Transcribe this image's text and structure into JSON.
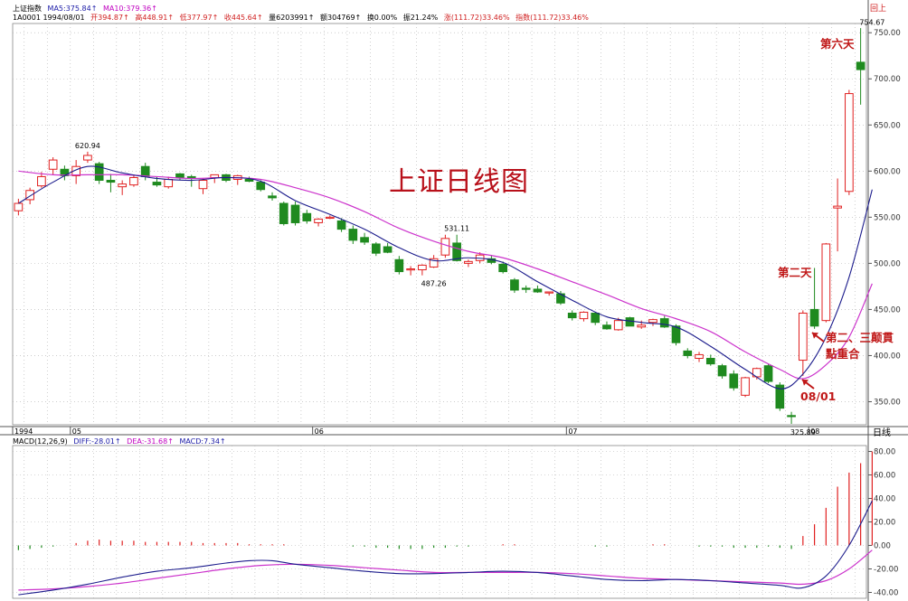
{
  "header": {
    "index_name": "上证指数",
    "ma5": "MA5:375.84↑",
    "ma10": "MA10:379.36↑",
    "code_date": "1A0001 1994/08/01",
    "open": "开394.87↑",
    "high": "高448.91↑",
    "low": "低377.97↑",
    "close": "收445.64↑",
    "volume": "量6203991↑",
    "amount": "额304769↑",
    "turnover": "换0.00%",
    "amplitude": "振21.24%",
    "change": "涨(111.72)33.46%",
    "index_change": "指数(111.72)33.46%",
    "corner": "回上"
  },
  "overlay_title": "上证日线图",
  "annotations": {
    "day6": "第六天",
    "day2": "第二天",
    "day23_line1": "第二、三颠貫",
    "day23_line2": "點重合",
    "date_0801": "08/01"
  },
  "macd_header": {
    "name": "MACD(12,26,9)",
    "diff": "DIFF:-28.01↑",
    "dea": "DEA:-31.68↑",
    "macd": "MACD:7.34↑"
  },
  "period_label": "日线",
  "colors": {
    "up": "#e02020",
    "down": "#1f8a1f",
    "ma5": "#1c1c8c",
    "ma10": "#cc33cc",
    "grid": "#b0b0b0",
    "title": "#b8101a"
  },
  "chart_data": [
    {
      "type": "candlestick",
      "title": "",
      "x_labels": [
        "1994",
        "05",
        "06",
        "07",
        "08"
      ],
      "x_label_index": [
        0,
        5,
        26,
        48,
        69
      ],
      "ylim": [
        325,
        760
      ],
      "y_ticks": [
        350,
        400,
        450,
        500,
        550,
        600,
        650,
        700,
        750
      ],
      "y_tick_labels": [
        "350.00",
        "400.00",
        "450.00",
        "500.00",
        "550.00",
        "600.00",
        "650.00",
        "700.00",
        "750.00"
      ],
      "price_labels": [
        {
          "text": "620.94",
          "index": 6,
          "value": 620.94
        },
        {
          "text": "531.11",
          "index": 38,
          "value": 531.11
        },
        {
          "text": "487.26",
          "index": 36,
          "value": 487.26
        },
        {
          "text": "325.89",
          "index": 68,
          "value": 325.89
        },
        {
          "text": "754.67",
          "index": 74,
          "value": 754.67
        }
      ],
      "candles": [
        {
          "o": 557,
          "h": 570,
          "l": 552,
          "c": 565
        },
        {
          "o": 569,
          "h": 582,
          "l": 564,
          "c": 579
        },
        {
          "o": 584,
          "h": 599,
          "l": 582,
          "c": 594
        },
        {
          "o": 602,
          "h": 615,
          "l": 596,
          "c": 612
        },
        {
          "o": 602,
          "h": 606,
          "l": 590,
          "c": 595
        },
        {
          "o": 595,
          "h": 612,
          "l": 586,
          "c": 605
        },
        {
          "o": 612,
          "h": 621,
          "l": 609,
          "c": 617
        },
        {
          "o": 608,
          "h": 610,
          "l": 586,
          "c": 590
        },
        {
          "o": 590,
          "h": 597,
          "l": 577,
          "c": 588
        },
        {
          "o": 583,
          "h": 590,
          "l": 574,
          "c": 586
        },
        {
          "o": 585,
          "h": 595,
          "l": 583,
          "c": 593
        },
        {
          "o": 605,
          "h": 609,
          "l": 590,
          "c": 594
        },
        {
          "o": 588,
          "h": 594,
          "l": 583,
          "c": 585
        },
        {
          "o": 583,
          "h": 594,
          "l": 581,
          "c": 591
        },
        {
          "o": 597,
          "h": 598,
          "l": 590,
          "c": 593
        },
        {
          "o": 594,
          "h": 596,
          "l": 583,
          "c": 592
        },
        {
          "o": 581,
          "h": 592,
          "l": 575,
          "c": 590
        },
        {
          "o": 593,
          "h": 596,
          "l": 587,
          "c": 596
        },
        {
          "o": 596,
          "h": 597,
          "l": 588,
          "c": 590
        },
        {
          "o": 591,
          "h": 596,
          "l": 585,
          "c": 595
        },
        {
          "o": 591,
          "h": 594,
          "l": 588,
          "c": 589
        },
        {
          "o": 588,
          "h": 590,
          "l": 578,
          "c": 580
        },
        {
          "o": 573,
          "h": 577,
          "l": 568,
          "c": 571
        },
        {
          "o": 565,
          "h": 567,
          "l": 541,
          "c": 543
        },
        {
          "o": 563,
          "h": 567,
          "l": 541,
          "c": 544
        },
        {
          "o": 554,
          "h": 558,
          "l": 543,
          "c": 546
        },
        {
          "o": 544,
          "h": 549,
          "l": 540,
          "c": 548
        },
        {
          "o": 549,
          "h": 552,
          "l": 548,
          "c": 550
        },
        {
          "o": 546,
          "h": 549,
          "l": 534,
          "c": 537
        },
        {
          "o": 537,
          "h": 541,
          "l": 521,
          "c": 525
        },
        {
          "o": 528,
          "h": 533,
          "l": 520,
          "c": 523
        },
        {
          "o": 521,
          "h": 523,
          "l": 508,
          "c": 511
        },
        {
          "o": 518,
          "h": 522,
          "l": 511,
          "c": 512
        },
        {
          "o": 504,
          "h": 508,
          "l": 488,
          "c": 491
        },
        {
          "o": 493,
          "h": 497,
          "l": 487,
          "c": 494
        },
        {
          "o": 493,
          "h": 499,
          "l": 487,
          "c": 498
        },
        {
          "o": 496,
          "h": 509,
          "l": 495,
          "c": 505
        },
        {
          "o": 509,
          "h": 531,
          "l": 506,
          "c": 527
        },
        {
          "o": 522,
          "h": 531,
          "l": 502,
          "c": 503
        },
        {
          "o": 500,
          "h": 504,
          "l": 496,
          "c": 502
        },
        {
          "o": 503,
          "h": 512,
          "l": 500,
          "c": 509
        },
        {
          "o": 505,
          "h": 509,
          "l": 499,
          "c": 501
        },
        {
          "o": 499,
          "h": 502,
          "l": 489,
          "c": 491
        },
        {
          "o": 482,
          "h": 484,
          "l": 468,
          "c": 471
        },
        {
          "o": 473,
          "h": 476,
          "l": 468,
          "c": 472
        },
        {
          "o": 472,
          "h": 476,
          "l": 468,
          "c": 469
        },
        {
          "o": 468,
          "h": 469,
          "l": 465,
          "c": 469
        },
        {
          "o": 467,
          "h": 470,
          "l": 455,
          "c": 457
        },
        {
          "o": 446,
          "h": 449,
          "l": 438,
          "c": 441
        },
        {
          "o": 440,
          "h": 448,
          "l": 437,
          "c": 447
        },
        {
          "o": 446,
          "h": 447,
          "l": 433,
          "c": 436
        },
        {
          "o": 433,
          "h": 437,
          "l": 428,
          "c": 429
        },
        {
          "o": 428,
          "h": 441,
          "l": 427,
          "c": 438
        },
        {
          "o": 441,
          "h": 442,
          "l": 432,
          "c": 432
        },
        {
          "o": 431,
          "h": 438,
          "l": 429,
          "c": 433
        },
        {
          "o": 436,
          "h": 440,
          "l": 432,
          "c": 439
        },
        {
          "o": 440,
          "h": 443,
          "l": 430,
          "c": 431
        },
        {
          "o": 432,
          "h": 434,
          "l": 411,
          "c": 414
        },
        {
          "o": 405,
          "h": 408,
          "l": 397,
          "c": 400
        },
        {
          "o": 397,
          "h": 404,
          "l": 393,
          "c": 401
        },
        {
          "o": 397,
          "h": 401,
          "l": 389,
          "c": 391
        },
        {
          "o": 389,
          "h": 391,
          "l": 375,
          "c": 378
        },
        {
          "o": 380,
          "h": 384,
          "l": 362,
          "c": 365
        },
        {
          "o": 357,
          "h": 377,
          "l": 355,
          "c": 376
        },
        {
          "o": 377,
          "h": 387,
          "l": 374,
          "c": 386
        },
        {
          "o": 389,
          "h": 391,
          "l": 370,
          "c": 372
        },
        {
          "o": 368,
          "h": 371,
          "l": 340,
          "c": 343
        },
        {
          "o": 335,
          "h": 339,
          "l": 326,
          "c": 334
        },
        {
          "o": 395,
          "h": 449,
          "l": 378,
          "c": 446
        },
        {
          "o": 450,
          "h": 495,
          "l": 429,
          "c": 432
        },
        {
          "o": 438,
          "h": 522,
          "l": 436,
          "c": 521
        },
        {
          "o": 560,
          "h": 592,
          "l": 513,
          "c": 562
        },
        {
          "o": 578,
          "h": 688,
          "l": 574,
          "c": 684
        },
        {
          "o": 718,
          "h": 755,
          "l": 672,
          "c": 710
        }
      ],
      "ma5": [
        {
          "i": 0,
          "v": 565
        },
        {
          "i": 3,
          "v": 588
        },
        {
          "i": 6,
          "v": 605
        },
        {
          "i": 9,
          "v": 598
        },
        {
          "i": 12,
          "v": 592
        },
        {
          "i": 15,
          "v": 590
        },
        {
          "i": 18,
          "v": 593
        },
        {
          "i": 21,
          "v": 589
        },
        {
          "i": 24,
          "v": 568
        },
        {
          "i": 27,
          "v": 553
        },
        {
          "i": 30,
          "v": 537
        },
        {
          "i": 33,
          "v": 517
        },
        {
          "i": 36,
          "v": 503
        },
        {
          "i": 39,
          "v": 506
        },
        {
          "i": 42,
          "v": 501
        },
        {
          "i": 45,
          "v": 480
        },
        {
          "i": 48,
          "v": 460
        },
        {
          "i": 51,
          "v": 442
        },
        {
          "i": 54,
          "v": 436
        },
        {
          "i": 57,
          "v": 431
        },
        {
          "i": 60,
          "v": 410
        },
        {
          "i": 63,
          "v": 385
        },
        {
          "i": 66,
          "v": 364
        },
        {
          "i": 68,
          "v": 380
        },
        {
          "i": 70,
          "v": 420
        },
        {
          "i": 72,
          "v": 485
        },
        {
          "i": 74,
          "v": 580
        }
      ],
      "ma10": [
        {
          "i": 0,
          "v": 600
        },
        {
          "i": 3,
          "v": 596
        },
        {
          "i": 6,
          "v": 596
        },
        {
          "i": 9,
          "v": 596
        },
        {
          "i": 12,
          "v": 594
        },
        {
          "i": 15,
          "v": 592
        },
        {
          "i": 18,
          "v": 593
        },
        {
          "i": 21,
          "v": 591
        },
        {
          "i": 24,
          "v": 582
        },
        {
          "i": 27,
          "v": 571
        },
        {
          "i": 30,
          "v": 556
        },
        {
          "i": 33,
          "v": 538
        },
        {
          "i": 36,
          "v": 524
        },
        {
          "i": 39,
          "v": 513
        },
        {
          "i": 42,
          "v": 506
        },
        {
          "i": 45,
          "v": 494
        },
        {
          "i": 48,
          "v": 480
        },
        {
          "i": 51,
          "v": 466
        },
        {
          "i": 54,
          "v": 451
        },
        {
          "i": 57,
          "v": 440
        },
        {
          "i": 60,
          "v": 426
        },
        {
          "i": 63,
          "v": 404
        },
        {
          "i": 66,
          "v": 385
        },
        {
          "i": 68,
          "v": 375
        },
        {
          "i": 70,
          "v": 390
        },
        {
          "i": 72,
          "v": 420
        },
        {
          "i": 74,
          "v": 478
        }
      ]
    },
    {
      "type": "bar",
      "title": "MACD(12,26,9)",
      "ylim": [
        -45,
        85
      ],
      "y_ticks": [
        -40,
        -20,
        0,
        20,
        40,
        60,
        80
      ],
      "y_tick_labels": [
        "-40.00",
        "-20.00",
        "0.00",
        "20.00",
        "40.00",
        "60.00",
        "80.00"
      ],
      "macd_bars": [
        -4,
        -3,
        -2,
        -1,
        0,
        2,
        4,
        5,
        4,
        4,
        4,
        3,
        3,
        3,
        3,
        3,
        2,
        2,
        2,
        2,
        1,
        1,
        1,
        1,
        0,
        0,
        0,
        0,
        0,
        -1,
        -1,
        -2,
        -2,
        -3,
        -3,
        -3,
        -2,
        -2,
        -1,
        -1,
        0,
        0,
        1,
        1,
        0,
        0,
        0,
        0,
        0,
        0,
        -1,
        -1,
        0,
        0,
        0,
        1,
        1,
        0,
        0,
        -1,
        -1,
        -1,
        -2,
        -2,
        -2,
        -1,
        -2,
        -3,
        8,
        18,
        32,
        50,
        62,
        70,
        80
      ],
      "diff": [
        {
          "i": 0,
          "v": -42
        },
        {
          "i": 3,
          "v": -38
        },
        {
          "i": 6,
          "v": -33
        },
        {
          "i": 9,
          "v": -27
        },
        {
          "i": 12,
          "v": -22
        },
        {
          "i": 15,
          "v": -19
        },
        {
          "i": 18,
          "v": -15
        },
        {
          "i": 20,
          "v": -13
        },
        {
          "i": 22,
          "v": -13
        },
        {
          "i": 24,
          "v": -16
        },
        {
          "i": 27,
          "v": -19
        },
        {
          "i": 30,
          "v": -22
        },
        {
          "i": 33,
          "v": -24
        },
        {
          "i": 36,
          "v": -24
        },
        {
          "i": 39,
          "v": -23
        },
        {
          "i": 42,
          "v": -22
        },
        {
          "i": 45,
          "v": -23
        },
        {
          "i": 48,
          "v": -26
        },
        {
          "i": 51,
          "v": -29
        },
        {
          "i": 54,
          "v": -30
        },
        {
          "i": 57,
          "v": -29
        },
        {
          "i": 60,
          "v": -30
        },
        {
          "i": 63,
          "v": -32
        },
        {
          "i": 66,
          "v": -34
        },
        {
          "i": 68,
          "v": -36
        },
        {
          "i": 70,
          "v": -26
        },
        {
          "i": 72,
          "v": 0
        },
        {
          "i": 74,
          "v": 38
        }
      ],
      "dea": [
        {
          "i": 0,
          "v": -38
        },
        {
          "i": 3,
          "v": -37
        },
        {
          "i": 6,
          "v": -35
        },
        {
          "i": 9,
          "v": -32
        },
        {
          "i": 12,
          "v": -28
        },
        {
          "i": 15,
          "v": -24
        },
        {
          "i": 18,
          "v": -20
        },
        {
          "i": 21,
          "v": -17
        },
        {
          "i": 24,
          "v": -16
        },
        {
          "i": 27,
          "v": -17
        },
        {
          "i": 30,
          "v": -19
        },
        {
          "i": 33,
          "v": -21
        },
        {
          "i": 36,
          "v": -23
        },
        {
          "i": 39,
          "v": -23
        },
        {
          "i": 42,
          "v": -23
        },
        {
          "i": 45,
          "v": -23
        },
        {
          "i": 48,
          "v": -24
        },
        {
          "i": 51,
          "v": -26
        },
        {
          "i": 54,
          "v": -28
        },
        {
          "i": 57,
          "v": -29
        },
        {
          "i": 60,
          "v": -30
        },
        {
          "i": 63,
          "v": -31
        },
        {
          "i": 66,
          "v": -32
        },
        {
          "i": 68,
          "v": -33
        },
        {
          "i": 70,
          "v": -30
        },
        {
          "i": 72,
          "v": -20
        },
        {
          "i": 74,
          "v": -4
        }
      ]
    }
  ]
}
